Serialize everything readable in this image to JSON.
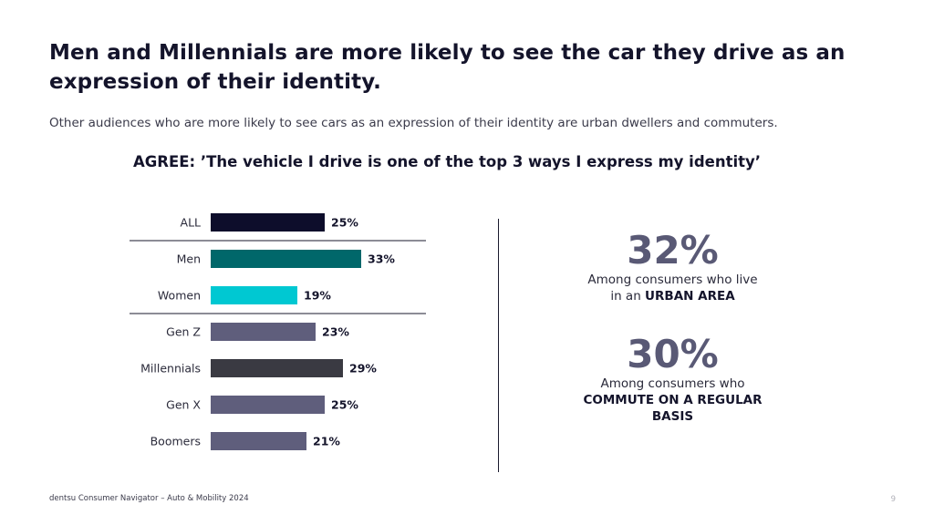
{
  "slide": {
    "title": "Men and Millennials are more likely to see the car they drive as an expression of their identity.",
    "subtitle": "Other audiences who are more likely to see cars as an expression of their identity are urban dwellers and commuters.",
    "footer": "dentsu Consumer Navigator – Auto & Mobility 2024",
    "page_number": "9"
  },
  "chart_data": {
    "type": "bar",
    "orientation": "horizontal",
    "title": "AGREE: ’The vehicle I drive is one of the top 3 ways I express my identity’",
    "categories": [
      "ALL",
      "Men",
      "Women",
      "Gen Z",
      "Millennials",
      "Gen X",
      "Boomers"
    ],
    "values": [
      25,
      33,
      19,
      23,
      29,
      25,
      21
    ],
    "value_labels": [
      "25%",
      "33%",
      "19%",
      "23%",
      "29%",
      "25%",
      "21%"
    ],
    "colors": [
      "#0d0d2b",
      "#00676a",
      "#00c8d2",
      "#5f5e7c",
      "#3a3a42",
      "#5f5e7c",
      "#5f5e7c"
    ],
    "separators_after": [
      "ALL",
      "Women"
    ],
    "xlim": [
      0,
      35
    ],
    "grid": false,
    "legend": "none"
  },
  "stats": [
    {
      "value": "32%",
      "line1": "Among consumers who live",
      "line2_prefix": "in an ",
      "line2_bold": "URBAN AREA"
    },
    {
      "value": "30%",
      "line1": "Among consumers who",
      "bold": "COMMUTE ON A REGULAR BASIS"
    }
  ]
}
